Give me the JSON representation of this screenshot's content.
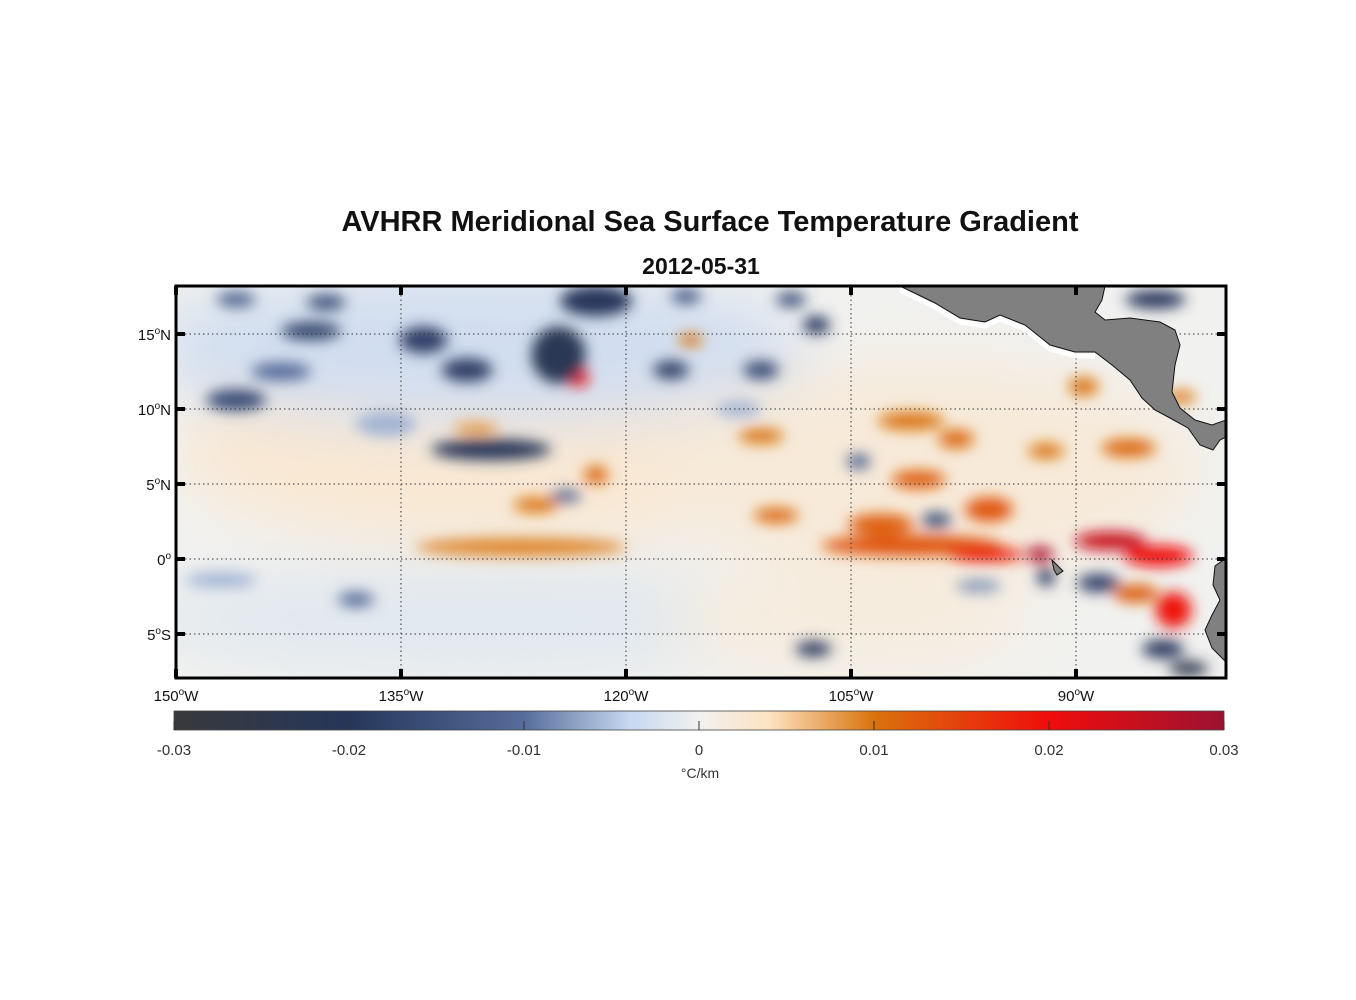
{
  "title": "AVHRR Meridional Sea Surface Temperature Gradient",
  "subtitle": "2012-05-31",
  "chart_data": {
    "type": "heatmap",
    "projection": "map",
    "lon_range": [
      -150,
      -80
    ],
    "lat_range": [
      -8,
      18.13
    ],
    "grid": true,
    "x_ticks": [
      {
        "value": -150,
        "deg": "150",
        "hem": "W"
      },
      {
        "value": -135,
        "deg": "135",
        "hem": "W"
      },
      {
        "value": -120,
        "deg": "120",
        "hem": "W"
      },
      {
        "value": -105,
        "deg": "105",
        "hem": "W"
      },
      {
        "value": -90,
        "deg": "90",
        "hem": "W"
      }
    ],
    "y_ticks": [
      {
        "value": 15,
        "deg": "15",
        "hem": "N"
      },
      {
        "value": 10,
        "deg": "10",
        "hem": "N"
      },
      {
        "value": 5,
        "deg": "5",
        "hem": "N"
      },
      {
        "value": 0,
        "deg": "0",
        "hem": ""
      },
      {
        "value": -5,
        "deg": "5",
        "hem": "S"
      }
    ],
    "colorbar": {
      "range": [
        -0.03,
        0.03
      ],
      "ticks": [
        "-0.03",
        "-0.02",
        "-0.01",
        "0",
        "0.01",
        "0.02",
        "0.03"
      ],
      "tick_values": [
        -0.03,
        -0.02,
        -0.01,
        0,
        0.01,
        0.02,
        0.03
      ],
      "label": "°C/km",
      "placement": "bottom",
      "stops": [
        {
          "v": -0.03,
          "c": "#38393b"
        },
        {
          "v": -0.02,
          "c": "#26365a"
        },
        {
          "v": -0.01,
          "c": "#566c9a"
        },
        {
          "v": -0.004,
          "c": "#c6d8f0"
        },
        {
          "v": 0,
          "c": "#f1f1ef"
        },
        {
          "v": 0.004,
          "c": "#fde3c2"
        },
        {
          "v": 0.01,
          "c": "#d9730c"
        },
        {
          "v": 0.02,
          "c": "#f00d0b"
        },
        {
          "v": 0.03,
          "c": "#9c1232"
        }
      ]
    },
    "land_color": "#808080",
    "features": [
      {
        "lon": -128,
        "lat": 7,
        "rlon": 22,
        "rlat": 6,
        "value": 0.0025
      },
      {
        "lon": -100,
        "lat": 6,
        "rlon": 18,
        "rlat": 7,
        "value": 0.002
      },
      {
        "lon": -130,
        "lat": 14,
        "rlon": 22,
        "rlat": 5,
        "value": -0.003
      },
      {
        "lon": -130,
        "lat": -4,
        "rlon": 22,
        "rlat": 3.5,
        "value": -0.0015
      },
      {
        "lon": -105,
        "lat": -4,
        "rlon": 12,
        "rlat": 3.5,
        "value": 0.0015
      },
      {
        "lon": -127,
        "lat": 0.8,
        "rlon": 7,
        "rlat": 0.6,
        "value": 0.009
      },
      {
        "lon": -101,
        "lat": 0.9,
        "rlon": 6,
        "rlat": 0.7,
        "value": 0.013
      },
      {
        "lon": -96,
        "lat": 0.3,
        "rlon": 2.5,
        "rlat": 0.5,
        "value": 0.018
      },
      {
        "lon": -92.4,
        "lat": 0.3,
        "rlon": 0.9,
        "rlat": 0.5,
        "value": 0.028
      },
      {
        "lon": -87.7,
        "lat": 1.2,
        "rlon": 2.4,
        "rlat": 0.6,
        "value": 0.025
      },
      {
        "lon": -84.5,
        "lat": 0.2,
        "rlon": 2.3,
        "rlat": 0.7,
        "value": 0.02
      },
      {
        "lon": -83.5,
        "lat": -3.4,
        "rlon": 1.2,
        "rlat": 1.2,
        "value": 0.019
      },
      {
        "lon": -86,
        "lat": -2.3,
        "rlon": 1.5,
        "rlat": 0.6,
        "value": 0.012
      },
      {
        "lon": -95.8,
        "lat": 3.3,
        "rlon": 1.6,
        "rlat": 0.8,
        "value": 0.013
      },
      {
        "lon": -103,
        "lat": 2.3,
        "rlon": 2.2,
        "rlat": 0.7,
        "value": 0.012
      },
      {
        "lon": -100.5,
        "lat": 5.3,
        "rlon": 1.8,
        "rlat": 0.6,
        "value": 0.012
      },
      {
        "lon": -101,
        "lat": 9.2,
        "rlon": 2.2,
        "rlat": 0.6,
        "value": 0.01
      },
      {
        "lon": -98,
        "lat": 8,
        "rlon": 1.2,
        "rlat": 0.6,
        "value": 0.011
      },
      {
        "lon": -92,
        "lat": 7.2,
        "rlon": 1.2,
        "rlat": 0.5,
        "value": 0.01
      },
      {
        "lon": -86.5,
        "lat": 7.4,
        "rlon": 1.8,
        "rlat": 0.6,
        "value": 0.011
      },
      {
        "lon": -89.5,
        "lat": 11.5,
        "rlon": 1,
        "rlat": 0.6,
        "value": 0.01
      },
      {
        "lon": -83,
        "lat": 10.8,
        "rlon": 1,
        "rlat": 0.4,
        "value": 0.01
      },
      {
        "lon": -110,
        "lat": 2.9,
        "rlon": 1.5,
        "rlat": 0.5,
        "value": 0.011
      },
      {
        "lon": -111,
        "lat": 8.2,
        "rlon": 1.5,
        "rlat": 0.5,
        "value": 0.01
      },
      {
        "lon": -122,
        "lat": 5.6,
        "rlon": 0.8,
        "rlat": 0.6,
        "value": 0.011
      },
      {
        "lon": -126,
        "lat": 3.6,
        "rlon": 1.5,
        "rlat": 0.5,
        "value": 0.01
      },
      {
        "lon": -123.2,
        "lat": 12.1,
        "rlon": 0.7,
        "rlat": 0.6,
        "value": 0.021
      },
      {
        "lon": -124.5,
        "lat": 14.9,
        "rlon": 0.6,
        "rlat": 0.5,
        "value": 0.014
      },
      {
        "lon": -115.7,
        "lat": 14.6,
        "rlon": 0.8,
        "rlat": 0.4,
        "value": 0.01
      },
      {
        "lon": -130,
        "lat": 8.7,
        "rlon": 1.5,
        "rlat": 0.4,
        "value": 0.008
      },
      {
        "lon": -124.5,
        "lat": 13.6,
        "rlon": 1.8,
        "rlat": 1.9,
        "value": -0.022
      },
      {
        "lon": -129,
        "lat": 7.3,
        "rlon": 4,
        "rlat": 0.7,
        "value": -0.021
      },
      {
        "lon": -146,
        "lat": 10.6,
        "rlon": 2,
        "rlat": 0.7,
        "value": -0.016
      },
      {
        "lon": -143,
        "lat": 12.5,
        "rlon": 2,
        "rlat": 0.6,
        "value": -0.01
      },
      {
        "lon": -141,
        "lat": 15.2,
        "rlon": 2,
        "rlat": 0.6,
        "value": -0.017
      },
      {
        "lon": -140,
        "lat": 17.1,
        "rlon": 1.3,
        "rlat": 0.5,
        "value": -0.016
      },
      {
        "lon": -146,
        "lat": 17.3,
        "rlon": 1.3,
        "rlat": 0.5,
        "value": -0.012
      },
      {
        "lon": -133.5,
        "lat": 14.6,
        "rlon": 1.6,
        "rlat": 0.9,
        "value": -0.018
      },
      {
        "lon": -122,
        "lat": 17.2,
        "rlon": 2.4,
        "rlat": 1,
        "value": -0.02
      },
      {
        "lon": -130.6,
        "lat": 12.6,
        "rlon": 1.7,
        "rlat": 0.8,
        "value": -0.018
      },
      {
        "lon": -117,
        "lat": 12.6,
        "rlon": 1.2,
        "rlat": 0.6,
        "value": -0.018
      },
      {
        "lon": -111,
        "lat": 12.6,
        "rlon": 1.2,
        "rlat": 0.6,
        "value": -0.016
      },
      {
        "lon": -107.3,
        "lat": 15.6,
        "rlon": 0.9,
        "rlat": 0.6,
        "value": -0.019
      },
      {
        "lon": -109,
        "lat": 17.3,
        "rlon": 1,
        "rlat": 0.5,
        "value": -0.015
      },
      {
        "lon": -116,
        "lat": 17.5,
        "rlon": 1,
        "rlat": 0.5,
        "value": -0.013
      },
      {
        "lon": -84.7,
        "lat": 17.3,
        "rlon": 2,
        "rlat": 0.6,
        "value": -0.02
      },
      {
        "lon": -88.5,
        "lat": -1.6,
        "rlon": 1.4,
        "rlat": 0.6,
        "value": -0.018
      },
      {
        "lon": -92,
        "lat": -1.2,
        "rlon": 0.6,
        "rlat": 0.6,
        "value": -0.018
      },
      {
        "lon": -96.5,
        "lat": -1.8,
        "rlon": 1.5,
        "rlat": 0.4,
        "value": -0.008
      },
      {
        "lon": -84.2,
        "lat": -6,
        "rlon": 1.4,
        "rlat": 0.6,
        "value": -0.02
      },
      {
        "lon": -82.5,
        "lat": -7.3,
        "rlon": 1.3,
        "rlat": 0.5,
        "value": -0.024
      },
      {
        "lon": -107.5,
        "lat": -6,
        "rlon": 1.2,
        "rlat": 0.5,
        "value": -0.02
      },
      {
        "lon": -99.3,
        "lat": 2.6,
        "rlon": 1,
        "rlat": 0.5,
        "value": -0.016
      },
      {
        "lon": -138,
        "lat": -2.7,
        "rlon": 1.2,
        "rlat": 0.5,
        "value": -0.01
      },
      {
        "lon": -147,
        "lat": -1.4,
        "rlon": 2.4,
        "rlat": 0.5,
        "value": -0.006
      },
      {
        "lon": -124,
        "lat": 4.2,
        "rlon": 1,
        "rlat": 0.4,
        "value": -0.012
      },
      {
        "lon": -112.5,
        "lat": 10,
        "rlon": 1.5,
        "rlat": 0.5,
        "value": -0.006
      },
      {
        "lon": -104.5,
        "lat": 6.5,
        "rlon": 0.8,
        "rlat": 0.5,
        "value": -0.012
      },
      {
        "lon": -136,
        "lat": 9,
        "rlon": 2,
        "rlat": 0.8,
        "value": -0.006
      }
    ]
  }
}
